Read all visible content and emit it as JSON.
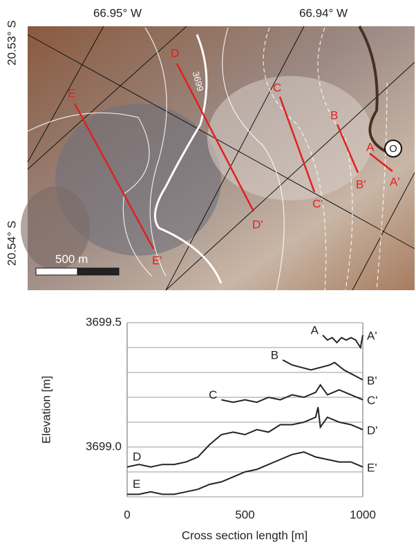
{
  "map": {
    "lon_labels": [
      "66.95° W",
      "66.94° W"
    ],
    "lat_labels": [
      "20.53° S",
      "20.54° S"
    ],
    "contour_label": "3699",
    "scale_label": "500 m",
    "marker_label": "O",
    "sections": [
      {
        "start": "A",
        "end": "A'"
      },
      {
        "start": "B",
        "end": "B'"
      },
      {
        "start": "C",
        "end": "C'"
      },
      {
        "start": "D",
        "end": "D'"
      },
      {
        "start": "E",
        "end": "E'"
      }
    ]
  },
  "chart_data": {
    "type": "line",
    "x_label": "Cross section length [m]",
    "y_label": "Elevation [m]",
    "xlim": [
      0,
      1000
    ],
    "xticks": [
      0,
      500,
      1000
    ],
    "ylim": [
      3698.8,
      3699.5
    ],
    "yticks": [
      {
        "value": 3699.0,
        "label": "3699.0"
      },
      {
        "value": 3699.5,
        "label": "3699.5"
      }
    ],
    "ygrid": [
      3698.8,
      3698.9,
      3699.0,
      3699.1,
      3699.2,
      3699.3,
      3699.4,
      3699.5
    ],
    "grid": true,
    "series": [
      {
        "name": "A",
        "end_label": "A'",
        "color": "#222222",
        "x": [
          830,
          850,
          870,
          890,
          910,
          930,
          950,
          970,
          990,
          1000
        ],
        "values": [
          3699.45,
          3699.43,
          3699.44,
          3699.42,
          3699.44,
          3699.43,
          3699.44,
          3699.43,
          3699.4,
          3699.45
        ]
      },
      {
        "name": "B",
        "end_label": "B'",
        "color": "#222222",
        "x": [
          660,
          700,
          740,
          780,
          820,
          860,
          880,
          920,
          960,
          1000
        ],
        "values": [
          3699.35,
          3699.33,
          3699.32,
          3699.31,
          3699.32,
          3699.33,
          3699.34,
          3699.31,
          3699.29,
          3699.27
        ]
      },
      {
        "name": "C",
        "end_label": "C'",
        "color": "#222222",
        "x": [
          400,
          450,
          500,
          550,
          600,
          650,
          700,
          750,
          800,
          820,
          850,
          900,
          950,
          1000
        ],
        "values": [
          3699.19,
          3699.18,
          3699.19,
          3699.18,
          3699.2,
          3699.19,
          3699.21,
          3699.2,
          3699.22,
          3699.25,
          3699.21,
          3699.23,
          3699.21,
          3699.19
        ]
      },
      {
        "name": "D",
        "end_label": "D'",
        "color": "#222222",
        "x": [
          0,
          50,
          100,
          150,
          200,
          250,
          300,
          350,
          400,
          450,
          500,
          550,
          600,
          650,
          700,
          750,
          800,
          810,
          820,
          850,
          900,
          950,
          1000
        ],
        "values": [
          3698.92,
          3698.93,
          3698.92,
          3698.93,
          3698.93,
          3698.94,
          3698.96,
          3699.01,
          3699.05,
          3699.06,
          3699.05,
          3699.07,
          3699.06,
          3699.09,
          3699.09,
          3699.1,
          3699.12,
          3699.16,
          3699.08,
          3699.12,
          3699.1,
          3699.09,
          3699.07
        ]
      },
      {
        "name": "E",
        "end_label": "E'",
        "color": "#222222",
        "x": [
          0,
          50,
          100,
          150,
          200,
          250,
          300,
          350,
          400,
          450,
          500,
          550,
          600,
          650,
          700,
          750,
          800,
          850,
          900,
          950,
          1000
        ],
        "values": [
          3698.81,
          3698.81,
          3698.82,
          3698.81,
          3698.81,
          3698.82,
          3698.83,
          3698.85,
          3698.86,
          3698.88,
          3698.9,
          3698.91,
          3698.93,
          3698.95,
          3698.97,
          3698.98,
          3698.96,
          3698.95,
          3698.94,
          3698.94,
          3698.92
        ]
      }
    ]
  }
}
